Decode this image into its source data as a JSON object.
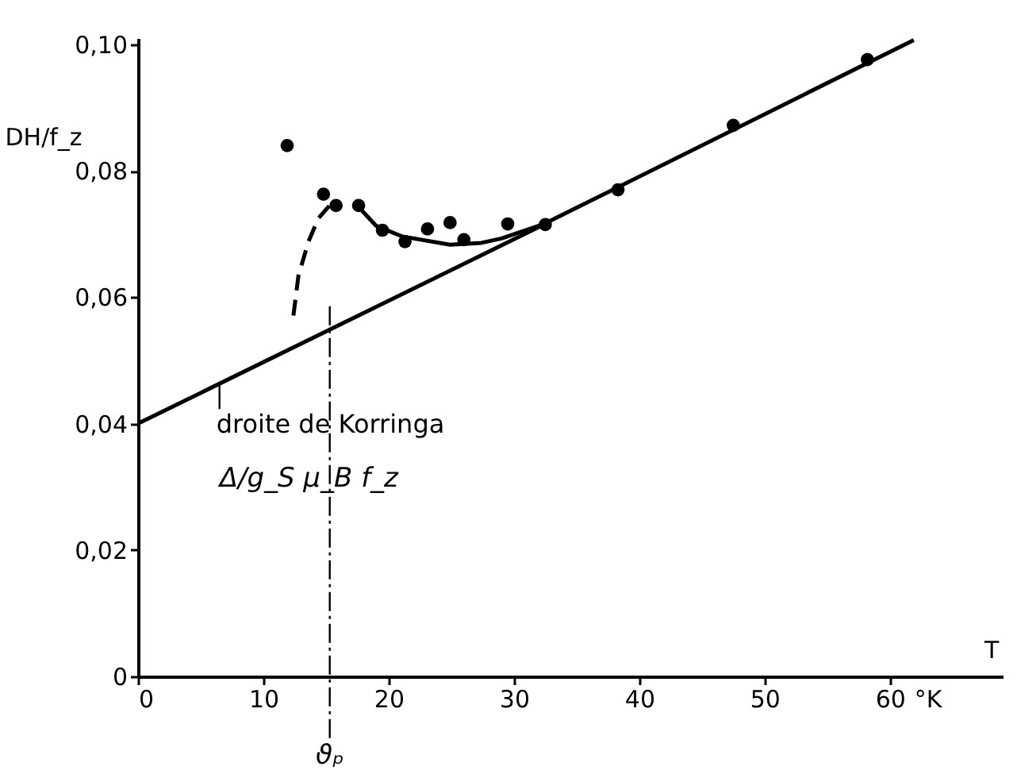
{
  "chart_data": {
    "type": "scatter",
    "xlabel": "T",
    "ylabel": "DH/f_z",
    "xlim": [
      0,
      69
    ],
    "ylim": [
      0,
      0.101
    ],
    "xticks": [
      0,
      10,
      20,
      30,
      40,
      50,
      60,
      {
        "value": 63,
        "label": "°K"
      }
    ],
    "yticks": [
      0,
      {
        "value": 0.02,
        "label": "0,02"
      },
      {
        "value": 0.04,
        "label": "0,04"
      },
      {
        "value": 0.06,
        "label": "0,06"
      },
      {
        "value": 0.08,
        "label": "0,08"
      },
      {
        "value": 0.1,
        "label": "0,10"
      }
    ],
    "grid": false,
    "series": [
      {
        "marker": "circle",
        "color": "#000000",
        "x": [
          11.9,
          14.8,
          15.8,
          17.6,
          19.5,
          21.3,
          23.1,
          24.9,
          26.0,
          29.5,
          32.5,
          38.3,
          47.5,
          58.2
        ],
        "values": [
          0.084,
          0.0763,
          0.0745,
          0.0745,
          0.0706,
          0.0688,
          0.0708,
          0.0718,
          0.0691,
          0.0716,
          0.0715,
          0.077,
          0.0872,
          0.0976
        ]
      },
      {
        "type": "line",
        "line_style": "solid",
        "color": "#000000",
        "x": [
          17.5,
          19.0,
          21.1,
          24.9,
          27.4,
          29.0,
          32.4,
          61.9
        ],
        "values": [
          0.0745,
          0.0713,
          0.0696,
          0.0683,
          0.0686,
          0.0693,
          0.0716,
          0.1007
        ]
      },
      {
        "type": "line",
        "line_style": "dashed",
        "color": "#000000",
        "x": [
          12.4,
          12.8,
          13.6,
          14.4,
          15.5
        ],
        "values": [
          0.0571,
          0.0634,
          0.0688,
          0.0725,
          0.075
        ]
      },
      {
        "type": "line",
        "line_style": "solid",
        "color": "#000000",
        "x": [
          0,
          32.4
        ],
        "values": [
          0.04,
          0.0715
        ]
      }
    ],
    "ref_lines": [
      {
        "axis": "x",
        "value": 15.3,
        "label": "ϑₚ",
        "line_style": "dashed",
        "color": "#000000"
      }
    ],
    "annotations": [
      {
        "text": "droite de Korringa",
        "x": 6.5,
        "y": 0.0463
      },
      "Δ/g_S μ_B f_z"
    ]
  }
}
